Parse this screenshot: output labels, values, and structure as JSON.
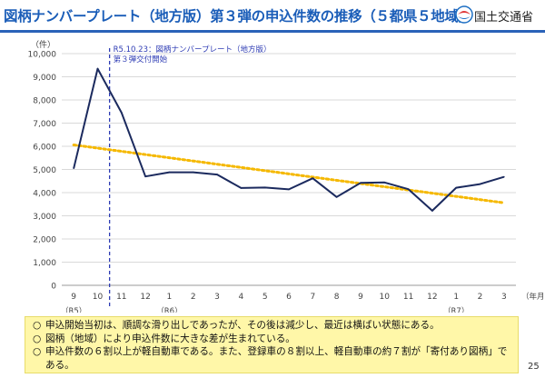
{
  "header": {
    "title": "図柄ナンバープレート（地方版）第３弾の申込件数の推移（５都県５地域）",
    "logo_text": "国土交通省",
    "logo_icon": "mlit-logo-icon"
  },
  "chart_data": {
    "type": "line",
    "title": "",
    "xlabel": "（年月）",
    "ylabel": "（件）",
    "ylim": [
      0,
      10000
    ],
    "yticks": [
      0,
      1000,
      2000,
      3000,
      4000,
      5000,
      6000,
      7000,
      8000,
      9000,
      10000
    ],
    "ytick_labels": [
      "0",
      "1,000",
      "2,000",
      "3,000",
      "4,000",
      "5,000",
      "6,000",
      "7,000",
      "8,000",
      "9,000",
      "10,000"
    ],
    "categories": [
      "9",
      "10",
      "11",
      "12",
      "1",
      "2",
      "3",
      "4",
      "5",
      "6",
      "7",
      "8",
      "9",
      "10",
      "11",
      "12",
      "1",
      "2",
      "3"
    ],
    "era_labels": [
      {
        "index": 0,
        "text": "（R5）"
      },
      {
        "index": 4,
        "text": "（R6）"
      },
      {
        "index": 16,
        "text": "（R7）"
      }
    ],
    "series": [
      {
        "values": [
          5050,
          9350,
          7450,
          4700,
          4880,
          4880,
          4780,
          4200,
          4220,
          4140,
          4620,
          3810,
          4420,
          4440,
          4150,
          3220,
          4210,
          4370,
          4680
        ],
        "color": "#1b2a5e"
      }
    ],
    "trendline": {
      "start": 6060,
      "end": 3560,
      "color": "#f5b800"
    },
    "annotation": {
      "position": 1.5,
      "lines": [
        "R5.10.23：図柄ナンバープレート（地方版）",
        "第３弾交付開始"
      ],
      "color": "#2e3cb4"
    },
    "grid": true,
    "legend": "none"
  },
  "notes": [
    {
      "bullet": "○",
      "text": "申込開始当初は、順調な滑り出しであったが、その後は減少し、最近は横ばい状態にある。"
    },
    {
      "bullet": "○",
      "text": "図柄（地域）により申込件数に大きな差が生まれている。"
    },
    {
      "bullet": "○",
      "text": "申込件数の６割以上が軽自動車である。また、登録車の８割以上、軽自動車の約７割が「寄付あり図柄」である。"
    }
  ],
  "page_number": "25"
}
